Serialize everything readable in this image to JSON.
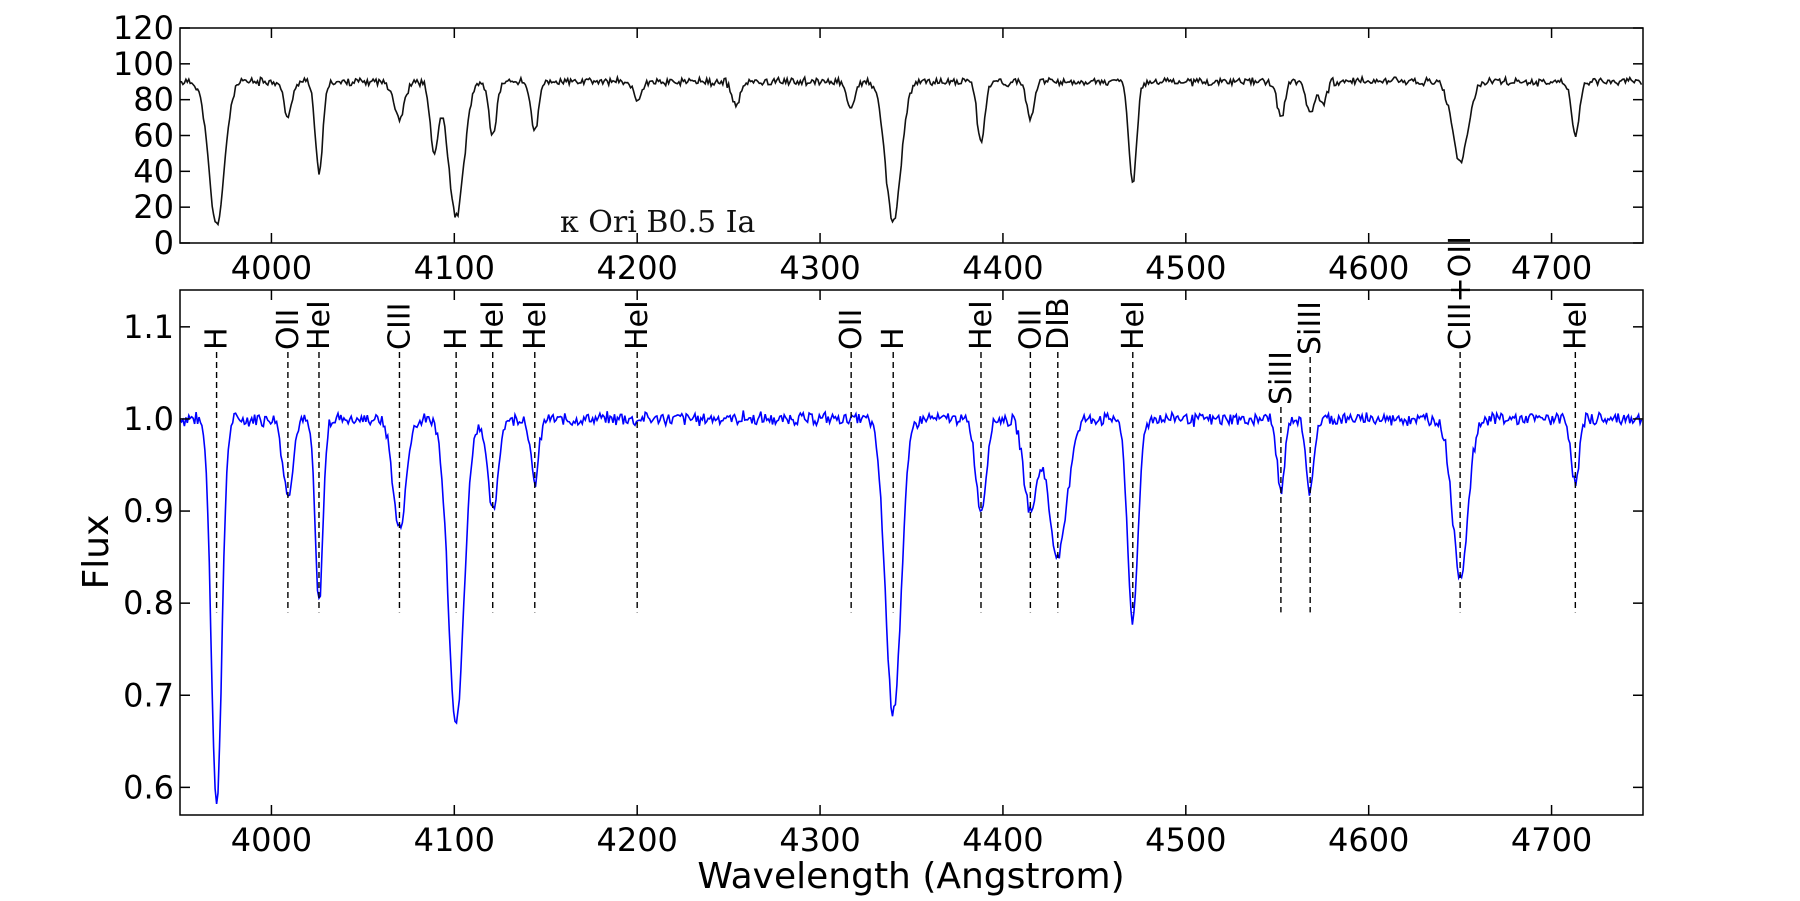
{
  "chart_data": [
    {
      "type": "line",
      "panel": "top",
      "annotation": "κ Ori  B0.5 Ia",
      "xlim": [
        3950,
        4750
      ],
      "ylim": [
        0,
        120
      ],
      "xticks": [
        4000,
        4100,
        4200,
        4300,
        4400,
        4500,
        4600,
        4700
      ],
      "yticks": [
        0,
        20,
        40,
        60,
        80,
        100,
        120
      ],
      "line_color": "#111111",
      "baseline": 90,
      "features": [
        {
          "x": 3970,
          "depth": 80,
          "width": 6
        },
        {
          "x": 4009,
          "depth": 20,
          "width": 3
        },
        {
          "x": 4026,
          "depth": 50,
          "width": 3
        },
        {
          "x": 4070,
          "depth": 20,
          "width": 4
        },
        {
          "x": 4089,
          "depth": 40,
          "width": 3
        },
        {
          "x": 4101,
          "depth": 75,
          "width": 6
        },
        {
          "x": 4121,
          "depth": 30,
          "width": 3
        },
        {
          "x": 4144,
          "depth": 27,
          "width": 3
        },
        {
          "x": 4200,
          "depth": 10,
          "width": 3
        },
        {
          "x": 4254,
          "depth": 14,
          "width": 3
        },
        {
          "x": 4317,
          "depth": 15,
          "width": 3
        },
        {
          "x": 4340,
          "depth": 78,
          "width": 6
        },
        {
          "x": 4388,
          "depth": 33,
          "width": 3
        },
        {
          "x": 4415,
          "depth": 20,
          "width": 3
        },
        {
          "x": 4471,
          "depth": 58,
          "width": 3
        },
        {
          "x": 4552,
          "depth": 20,
          "width": 3
        },
        {
          "x": 4568,
          "depth": 18,
          "width": 3
        },
        {
          "x": 4575,
          "depth": 12,
          "width": 3
        },
        {
          "x": 4650,
          "depth": 45,
          "width": 6
        },
        {
          "x": 4713,
          "depth": 30,
          "width": 3
        }
      ]
    },
    {
      "type": "line",
      "panel": "bottom",
      "xlabel": "Wavelength (Angstrom)",
      "ylabel": "Flux",
      "xlim": [
        3950,
        4750
      ],
      "ylim": [
        0.57,
        1.14
      ],
      "xticks": [
        4000,
        4100,
        4200,
        4300,
        4400,
        4500,
        4600,
        4700
      ],
      "yticks": [
        0.6,
        0.7,
        0.8,
        0.9,
        1.0,
        1.1
      ],
      "line_color": "#0000ff",
      "baseline": 1.0,
      "features": [
        {
          "x": 3970,
          "depth": 0.42,
          "width": 4
        },
        {
          "x": 4009,
          "depth": 0.08,
          "width": 4
        },
        {
          "x": 4026,
          "depth": 0.2,
          "width": 3
        },
        {
          "x": 4070,
          "depth": 0.12,
          "width": 5
        },
        {
          "x": 4101,
          "depth": 0.33,
          "width": 6
        },
        {
          "x": 4121,
          "depth": 0.1,
          "width": 4
        },
        {
          "x": 4144,
          "depth": 0.07,
          "width": 3
        },
        {
          "x": 4340,
          "depth": 0.32,
          "width": 6
        },
        {
          "x": 4388,
          "depth": 0.1,
          "width": 4
        },
        {
          "x": 4415,
          "depth": 0.1,
          "width": 5
        },
        {
          "x": 4430,
          "depth": 0.15,
          "width": 7
        },
        {
          "x": 4471,
          "depth": 0.22,
          "width": 4
        },
        {
          "x": 4552,
          "depth": 0.08,
          "width": 3
        },
        {
          "x": 4568,
          "depth": 0.08,
          "width": 3
        },
        {
          "x": 4650,
          "depth": 0.17,
          "width": 6
        },
        {
          "x": 4713,
          "depth": 0.07,
          "width": 3
        }
      ],
      "line_ids": [
        {
          "label": "H",
          "x": 3970
        },
        {
          "label": "OII",
          "x": 4009
        },
        {
          "label": "HeI",
          "x": 4026
        },
        {
          "label": "CIII",
          "x": 4070
        },
        {
          "label": "H",
          "x": 4101
        },
        {
          "label": "HeI",
          "x": 4121
        },
        {
          "label": "HeI",
          "x": 4144
        },
        {
          "label": "HeI",
          "x": 4200
        },
        {
          "label": "OII",
          "x": 4317
        },
        {
          "label": "H",
          "x": 4340
        },
        {
          "label": "HeI",
          "x": 4388
        },
        {
          "label": "OII",
          "x": 4415
        },
        {
          "label": "DIB",
          "x": 4430
        },
        {
          "label": "HeI",
          "x": 4471
        },
        {
          "label": "SiIII",
          "x": 4552
        },
        {
          "label": "SiIII",
          "x": 4568
        },
        {
          "label": "CIII+OII",
          "x": 4650
        },
        {
          "label": "HeI",
          "x": 4713
        }
      ]
    }
  ]
}
